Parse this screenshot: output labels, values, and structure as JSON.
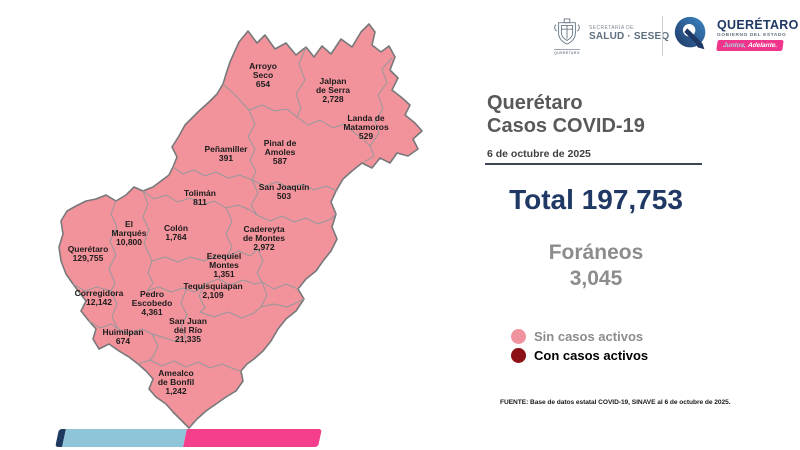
{
  "header": {
    "salud_logo": {
      "line_small": "SECRETARÍA DE",
      "line_big": "SALUD · SESEQ",
      "caption": "QUERÉTARO"
    },
    "gobierno_logo": {
      "name": "QUERÉTARO",
      "subtitle": "GOBIERNO DEL ESTADO",
      "tagline_part1": "Juntos,",
      "tagline_part2": "Adelante."
    }
  },
  "panel": {
    "title_line1": "Querétaro",
    "title_line2": "Casos COVID-19",
    "date": "6 de octubre de 2025",
    "total_label": "Total",
    "total_value": "197,753",
    "foraneos_label": "Foráneos",
    "foraneos_value": "3,045",
    "legend": [
      {
        "label": "Sin casos activos",
        "color": "#F0939E"
      },
      {
        "label": "Con casos activos",
        "color": "#8C1016"
      }
    ],
    "source": "FUENTE: Base de datos estatal COVID-19, SINAVE  al 6 de octubre de 2025."
  },
  "map": {
    "region": "Querétaro",
    "fill_color": "#F2929B",
    "border_color": "#97999B",
    "outline_color": "#77787A",
    "municipalities": [
      {
        "name": "Arroyo Seco",
        "name_lines": [
          "Arroyo",
          "Seco"
        ],
        "cases": "654"
      },
      {
        "name": "Jalpan de Serra",
        "name_lines": [
          "Jalpan",
          "de Serra"
        ],
        "cases": "2,728"
      },
      {
        "name": "Landa de Matamoros",
        "name_lines": [
          "Landa de",
          "Matamoros"
        ],
        "cases": "529"
      },
      {
        "name": "Pinal de Amoles",
        "name_lines": [
          "Pinal de",
          "Amoles"
        ],
        "cases": "587"
      },
      {
        "name": "Peñamiller",
        "name_lines": [
          "Peñamiller"
        ],
        "cases": "391"
      },
      {
        "name": "San Joaquín",
        "name_lines": [
          "San Joaquín"
        ],
        "cases": "503"
      },
      {
        "name": "Tolimán",
        "name_lines": [
          "Tolimán"
        ],
        "cases": "811"
      },
      {
        "name": "Colón",
        "name_lines": [
          "Colón"
        ],
        "cases": "1,764"
      },
      {
        "name": "Cadereyta de Montes",
        "name_lines": [
          "Cadereyta",
          "de Montes"
        ],
        "cases": "2,972"
      },
      {
        "name": "El Marqués",
        "name_lines": [
          "El",
          "Marqués"
        ],
        "cases": "10,800"
      },
      {
        "name": "Querétaro",
        "name_lines": [
          "Querétaro"
        ],
        "cases": "129,755"
      },
      {
        "name": "Corregidora",
        "name_lines": [
          "Corregidora"
        ],
        "cases": "12,142"
      },
      {
        "name": "Ezequiel Montes",
        "name_lines": [
          "Ezequiel",
          "Montes"
        ],
        "cases": "1,351"
      },
      {
        "name": "Tequisquiapan",
        "name_lines": [
          "Tequisquiapan"
        ],
        "cases": "2,109"
      },
      {
        "name": "Pedro Escobedo",
        "name_lines": [
          "Pedro",
          "Escobedo"
        ],
        "cases": "4,361"
      },
      {
        "name": "San Juan del Río",
        "name_lines": [
          "San Juan",
          "del Río"
        ],
        "cases": "21,335"
      },
      {
        "name": "Huimilpan",
        "name_lines": [
          "Huimilpan"
        ],
        "cases": "674"
      },
      {
        "name": "Amealco de Bonfil",
        "name_lines": [
          "Amealco",
          "de Bonfil"
        ],
        "cases": "1,242"
      }
    ]
  },
  "footer_ribbon": {
    "colors": [
      "#1F3A5F",
      "#8FC5D9",
      "#F53E8C"
    ]
  }
}
